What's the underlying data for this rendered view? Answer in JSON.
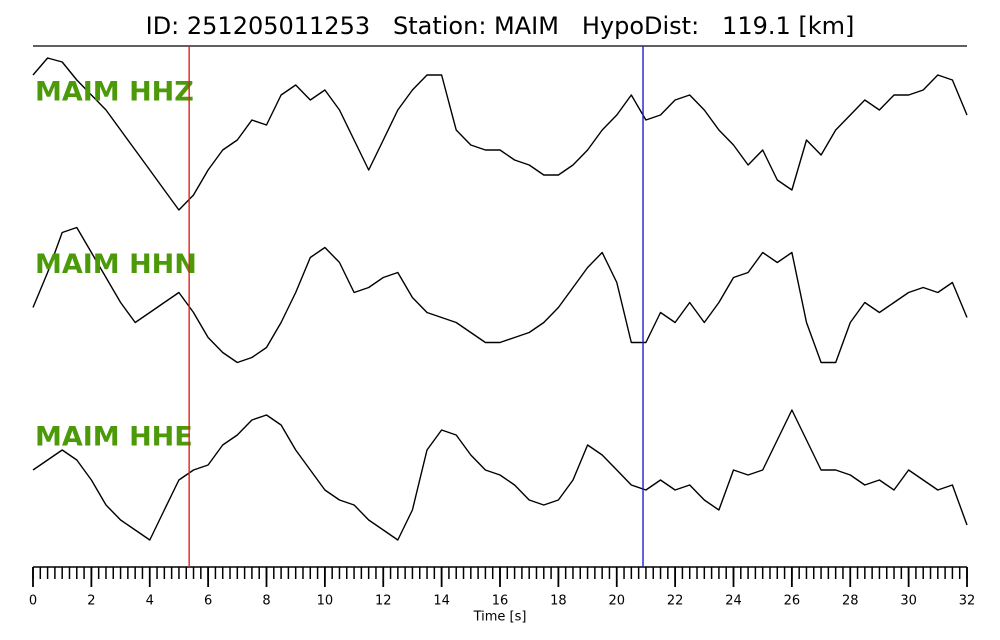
{
  "chart_data": {
    "type": "line",
    "title": "ID: 251205011253   Station: MAIM   HypoDist:   119.1 [km]",
    "xlabel": "Time [s]",
    "xlim": [
      0,
      32
    ],
    "xticks": [
      0,
      2,
      4,
      6,
      8,
      10,
      12,
      14,
      16,
      18,
      20,
      22,
      24,
      26,
      28,
      30,
      32
    ],
    "xminorticks": [
      0,
      0.25,
      0.5,
      0.75,
      1,
      1.25,
      1.5,
      1.75,
      2,
      2.25,
      2.5,
      2.75,
      3,
      3.25,
      3.5,
      3.75,
      4,
      4.25,
      4.5,
      4.75,
      5,
      5.25,
      5.5,
      5.75,
      6,
      6.25,
      6.5,
      6.75,
      7,
      7.25,
      7.5,
      7.75,
      8,
      8.25,
      8.5,
      8.75,
      9,
      9.25,
      9.5,
      9.75,
      10,
      10.25,
      10.5,
      10.75,
      11,
      11.25,
      11.5,
      11.75,
      12,
      12.25,
      12.5,
      12.75,
      13,
      13.25,
      13.5,
      13.75,
      14,
      14.25,
      14.5,
      14.75,
      15,
      15.25,
      15.5,
      15.75,
      16,
      16.25,
      16.5,
      16.75,
      17,
      17.25,
      17.5,
      17.75,
      18,
      18.25,
      18.5,
      18.75,
      19,
      19.25,
      19.5,
      19.75,
      20,
      20.25,
      20.5,
      20.75,
      21,
      21.25,
      21.5,
      21.75,
      22,
      22.25,
      22.5,
      22.75,
      23,
      23.25,
      23.5,
      23.75,
      24,
      24.25,
      24.5,
      24.75,
      25,
      25.25,
      25.5,
      25.75,
      26,
      26.25,
      26.5,
      26.75,
      27,
      27.25,
      27.5,
      27.75,
      28,
      28.25,
      28.5,
      28.75,
      29,
      29.25,
      29.5,
      29.75,
      30,
      30.25,
      30.5,
      30.75,
      31,
      31.25,
      31.5,
      31.75,
      32
    ],
    "ylim": [
      -90,
      90
    ],
    "label_color": "#4c9a0a",
    "picks": [
      {
        "x": 5.35,
        "color": "#e02020"
      },
      {
        "x": 20.9,
        "color": "#2020d0"
      }
    ],
    "x": [
      0,
      0.5,
      1,
      1.5,
      2,
      2.5,
      3,
      3.5,
      4,
      4.5,
      5,
      5.5,
      6,
      6.5,
      7,
      7.5,
      8,
      8.5,
      9,
      9.5,
      10,
      10.5,
      11,
      11.5,
      12,
      12.5,
      13,
      13.5,
      14,
      14.5,
      15,
      15.5,
      16,
      16.5,
      17,
      17.5,
      18,
      18.5,
      19,
      19.5,
      20,
      20.5,
      21,
      21.5,
      22,
      22.5,
      23,
      23.5,
      24,
      24.5,
      25,
      25.5,
      26,
      26.5,
      27,
      27.5,
      28,
      28.5,
      29,
      29.5,
      30,
      30.5,
      31,
      31.5,
      32
    ],
    "series": [
      {
        "name": "MAIM HHZ",
        "color": "#000000",
        "values": [
          60,
          77,
          73,
          55,
          40,
          25,
          5,
          -15,
          -35,
          -55,
          -75,
          -60,
          -35,
          -15,
          -5,
          15,
          10,
          40,
          50,
          35,
          45,
          25,
          -5,
          -35,
          -5,
          25,
          45,
          60,
          60,
          5,
          -10,
          -15,
          -15,
          -25,
          -30,
          -40,
          -40,
          -30,
          -15,
          5,
          20,
          40,
          15,
          20,
          35,
          40,
          25,
          5,
          -10,
          -30,
          -15,
          -45,
          -55,
          -5,
          -20,
          5,
          20,
          35,
          25,
          40,
          40,
          45,
          60,
          55,
          20
        ]
      },
      {
        "name": "MAIM HHN",
        "color": "#000000",
        "values": [
          0,
          35,
          75,
          80,
          55,
          30,
          5,
          -15,
          -5,
          5,
          15,
          -5,
          -30,
          -45,
          -55,
          -50,
          -40,
          -15,
          15,
          50,
          60,
          45,
          15,
          20,
          30,
          35,
          10,
          -5,
          -10,
          -15,
          -25,
          -35,
          -35,
          -30,
          -25,
          -15,
          0,
          20,
          40,
          55,
          25,
          -35,
          -35,
          -5,
          -15,
          5,
          -15,
          5,
          30,
          35,
          55,
          45,
          55,
          -15,
          -55,
          -55,
          -15,
          5,
          -5,
          5,
          15,
          20,
          15,
          25,
          -10
        ]
      },
      {
        "name": "MAIM HHE",
        "color": "#000000",
        "values": [
          10,
          20,
          30,
          20,
          0,
          -25,
          -40,
          -50,
          -60,
          -30,
          0,
          10,
          15,
          35,
          45,
          60,
          65,
          55,
          30,
          10,
          -10,
          -20,
          -25,
          -40,
          -50,
          -60,
          -30,
          30,
          50,
          45,
          25,
          10,
          5,
          -5,
          -20,
          -25,
          -20,
          0,
          35,
          25,
          10,
          -5,
          -10,
          0,
          -10,
          -5,
          -20,
          -30,
          10,
          5,
          10,
          40,
          70,
          40,
          10,
          10,
          5,
          -5,
          0,
          -10,
          10,
          0,
          -10,
          -5,
          -45
        ]
      }
    ]
  }
}
